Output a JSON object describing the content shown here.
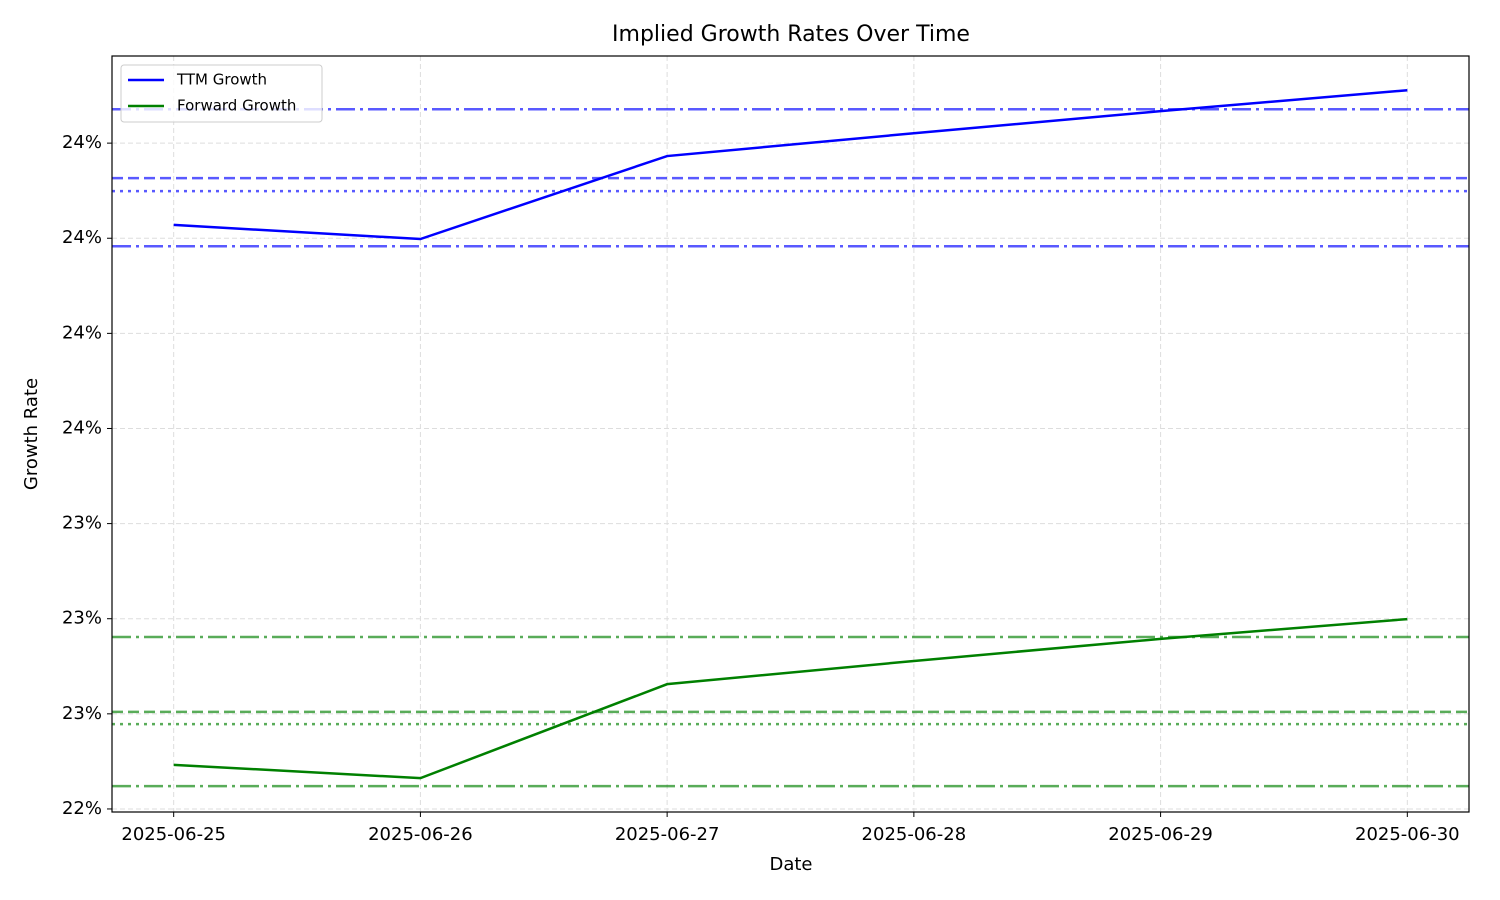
{
  "chart_data": {
    "type": "line",
    "title": "Implied Growth Rates Over Time",
    "x_label": "Date",
    "y_label": "Growth Rate",
    "x": [
      "2025-06-25",
      "2025-06-26",
      "2025-06-27",
      "2025-06-28",
      "2025-06-29",
      "2025-06-30"
    ],
    "series": [
      {
        "name": "TTM Growth",
        "color": "#0000ff",
        "values": [
          24.035,
          23.998,
          24.216,
          24.276,
          24.334,
          24.389
        ]
      },
      {
        "name": "Forward Growth",
        "color": "#008000",
        "values": [
          22.616,
          22.581,
          22.828,
          22.889,
          22.947,
          22.999
        ]
      }
    ],
    "reference_lines": [
      {
        "value": 24.339,
        "color": "#0000ff",
        "style": "dashdot"
      },
      {
        "value": 24.158,
        "color": "#0000ff",
        "style": "dashed"
      },
      {
        "value": 24.124,
        "color": "#0000ff",
        "style": "dotted"
      },
      {
        "value": 23.979,
        "color": "#0000ff",
        "style": "dashdot"
      },
      {
        "value": 22.952,
        "color": "#008000",
        "style": "dashdot"
      },
      {
        "value": 22.755,
        "color": "#008000",
        "style": "dashed"
      },
      {
        "value": 22.723,
        "color": "#008000",
        "style": "dotted"
      },
      {
        "value": 22.56,
        "color": "#008000",
        "style": "dashdot"
      }
    ],
    "ylim": [
      22.492,
      24.479
    ],
    "yticks": [
      {
        "value": 22.5,
        "label": "22%"
      },
      {
        "value": 22.75,
        "label": "23%"
      },
      {
        "value": 23.0,
        "label": "23%"
      },
      {
        "value": 23.25,
        "label": "23%"
      },
      {
        "value": 23.5,
        "label": "24%"
      },
      {
        "value": 23.75,
        "label": "24%"
      },
      {
        "value": 24.0,
        "label": "24%"
      },
      {
        "value": 24.25,
        "label": "24%"
      }
    ],
    "grid": true,
    "legend": "upper left"
  }
}
